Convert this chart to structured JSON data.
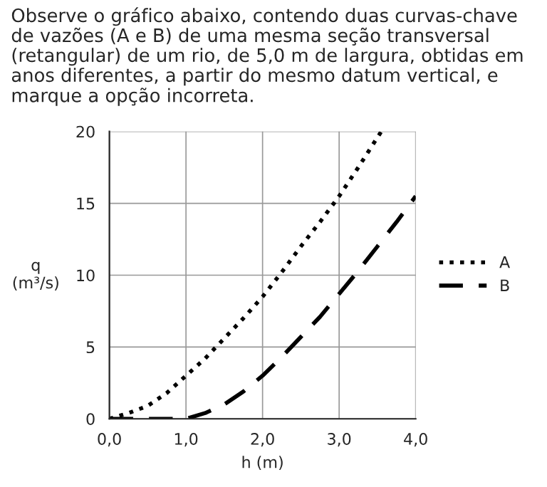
{
  "chart_data": {
    "type": "line",
    "title": "Observe o gráfico abaixo, contendo duas curvas-chave de vazões (A e B) de uma mesma seção transversal (retangular) de um rio, de 5,0 m de largura, obtidas em anos diferentes, a partir do mesmo datum vertical, e marque a opção incorreta.",
    "xlabel": "h (m)",
    "ylabel": "q\n(m³/s)",
    "series": [
      {
        "name": "A",
        "color": "#000000",
        "line_style": "dotted",
        "x": [
          0,
          0.25,
          0.5,
          0.75,
          1,
          1.25,
          1.5,
          1.75,
          2,
          2.25,
          2.5,
          2.75,
          3,
          3.25,
          3.55
        ],
        "values": [
          0,
          0.4,
          0.9,
          1.8,
          3,
          4.2,
          5.6,
          7,
          8.5,
          10.2,
          12,
          13.7,
          15.5,
          17.5,
          20
        ]
      },
      {
        "name": "B",
        "color": "#000000",
        "line_style": "dashed",
        "x": [
          0,
          0.5,
          1,
          1.25,
          1.5,
          1.75,
          2,
          2.25,
          2.5,
          2.75,
          3,
          3.25,
          3.5,
          3.75,
          4
        ],
        "values": [
          0,
          0,
          0,
          0.4,
          1,
          1.9,
          3,
          4.3,
          5.7,
          7.1,
          8.7,
          10.3,
          12,
          13.7,
          15.5
        ]
      }
    ],
    "xlim": [
      0,
      4
    ],
    "ylim": [
      0,
      20
    ],
    "xticks": [
      {
        "value": 0,
        "label": "0,0"
      },
      {
        "value": 1,
        "label": "1,0"
      },
      {
        "value": 2,
        "label": "2,0"
      },
      {
        "value": 3,
        "label": "3,0"
      },
      {
        "value": 4,
        "label": "4,0"
      }
    ],
    "yticks": [
      0,
      5,
      10,
      15,
      20
    ],
    "grid": true,
    "legend": "right",
    "marker": "none"
  }
}
